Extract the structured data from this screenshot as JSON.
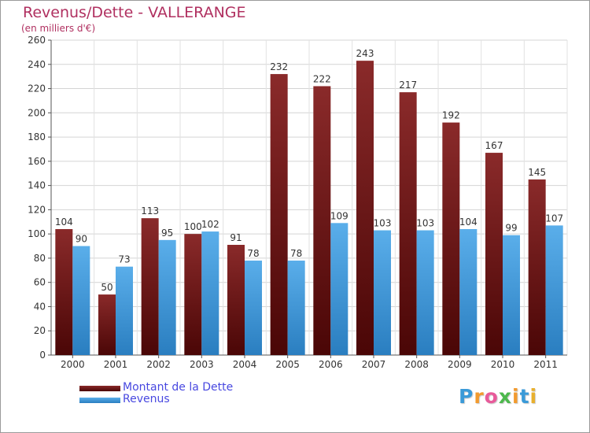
{
  "header": {
    "title": "Revenus/Dette - VALLERANGE",
    "subtitle": "(en milliers d'€)"
  },
  "legend": {
    "items": [
      {
        "label": "Montant de la Dette",
        "color": "#6e1414"
      },
      {
        "label": "Revenus",
        "color": "#3d95d8"
      }
    ]
  },
  "logo": {
    "text": "Proxiti",
    "letter_colors": [
      "#3a9ad8",
      "#f29a2e",
      "#e85a9a",
      "#4cb84c",
      "#f29a2e",
      "#3a9ad8",
      "#e8b02e"
    ]
  },
  "chart_data": {
    "type": "bar",
    "title": "Revenus/Dette - VALLERANGE",
    "subtitle": "(en milliers d'€)",
    "xlabel": "",
    "ylabel": "",
    "categories": [
      "2000",
      "2001",
      "2002",
      "2003",
      "2004",
      "2005",
      "2006",
      "2007",
      "2008",
      "2009",
      "2010",
      "2011"
    ],
    "series": [
      {
        "name": "Montant de la Dette",
        "values": [
          104,
          50,
          113,
          100,
          91,
          232,
          222,
          243,
          217,
          192,
          167,
          145
        ],
        "color": "#6e1414"
      },
      {
        "name": "Revenus",
        "values": [
          90,
          73,
          95,
          102,
          78,
          78,
          109,
          103,
          103,
          104,
          99,
          107
        ],
        "color": "#3d95d8"
      }
    ],
    "ylim": [
      0,
      260
    ],
    "yticks": [
      0,
      20,
      40,
      60,
      80,
      100,
      120,
      140,
      160,
      180,
      200,
      220,
      240,
      260
    ],
    "grid": true,
    "legend_position": "bottom-left"
  }
}
